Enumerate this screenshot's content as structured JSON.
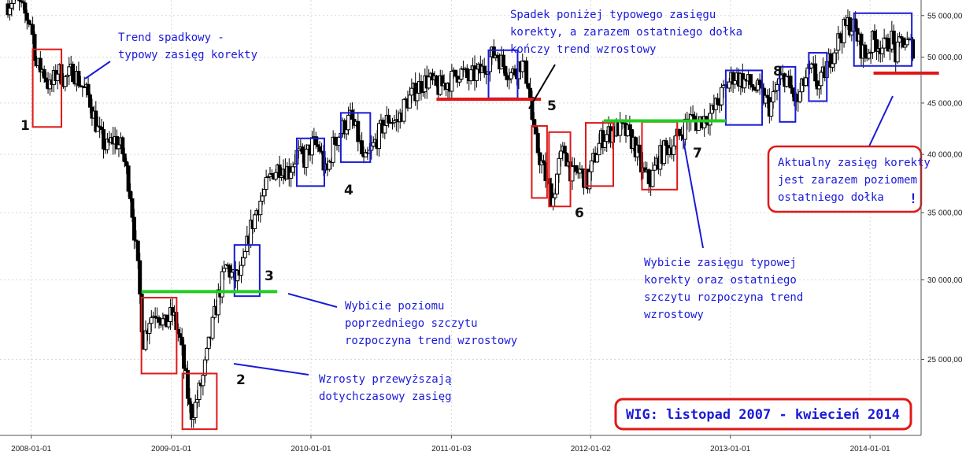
{
  "chart_data": {
    "type": "candlestick",
    "title": "WIG: listopad 2007 - kwiecień 2014",
    "y_scale": "log",
    "ylim": [
      21000,
      57000
    ],
    "x_ticks": [
      "2008-01-01",
      "2009-01-01",
      "2010-01-01",
      "2011-01-03",
      "2012-01-02",
      "2013-01-01",
      "2014-01-01"
    ],
    "y_ticks": [
      "25 000,00",
      "30 000,00",
      "35 000,00",
      "40 000,00",
      "45 000,00",
      "50 000,00",
      "55 000,00"
    ],
    "y_tick_values": [
      25000,
      30000,
      35000,
      40000,
      45000,
      50000,
      55000
    ],
    "x_range": [
      "2007-11-01",
      "2014-04-30"
    ],
    "series": [
      {
        "values": [
          [
            "2007-11-01",
            56500
          ],
          [
            "2007-11-20",
            57500
          ],
          [
            "2007-12-10",
            55500
          ],
          [
            "2008-01-01",
            54000
          ],
          [
            "2008-01-15",
            49000
          ],
          [
            "2008-02-01",
            48500
          ],
          [
            "2008-02-20",
            46500
          ],
          [
            "2008-03-10",
            48500
          ],
          [
            "2008-03-30",
            47500
          ],
          [
            "2008-04-20",
            48500
          ],
          [
            "2008-05-10",
            47000
          ],
          [
            "2008-06-01",
            45500
          ],
          [
            "2008-06-25",
            42000
          ],
          [
            "2008-07-15",
            40500
          ],
          [
            "2008-08-05",
            41500
          ],
          [
            "2008-08-25",
            40500
          ],
          [
            "2008-09-15",
            37000
          ],
          [
            "2008-10-05",
            31000
          ],
          [
            "2008-10-20",
            26000
          ],
          [
            "2008-11-05",
            27500
          ],
          [
            "2008-11-25",
            28000
          ],
          [
            "2008-12-15",
            27000
          ],
          [
            "2009-01-05",
            27800
          ],
          [
            "2009-01-25",
            26000
          ],
          [
            "2009-02-10",
            23500
          ],
          [
            "2009-02-20",
            22000
          ],
          [
            "2009-03-05",
            22500
          ],
          [
            "2009-03-25",
            24000
          ],
          [
            "2009-04-15",
            26500
          ],
          [
            "2009-05-05",
            29000
          ],
          [
            "2009-05-25",
            31000
          ],
          [
            "2009-06-15",
            30000
          ],
          [
            "2009-07-05",
            30500
          ],
          [
            "2009-07-25",
            33500
          ],
          [
            "2009-08-15",
            35500
          ],
          [
            "2009-09-05",
            37000
          ],
          [
            "2009-09-25",
            38500
          ],
          [
            "2009-10-15",
            39000
          ],
          [
            "2009-11-05",
            38500
          ],
          [
            "2009-11-25",
            40000
          ],
          [
            "2009-12-15",
            39500
          ],
          [
            "2010-01-05",
            41000
          ],
          [
            "2010-01-25",
            40500
          ],
          [
            "2010-02-10",
            38000
          ],
          [
            "2010-03-01",
            41000
          ],
          [
            "2010-03-25",
            42500
          ],
          [
            "2010-04-15",
            43500
          ],
          [
            "2010-05-05",
            41500
          ],
          [
            "2010-05-20",
            39000
          ],
          [
            "2010-06-10",
            40500
          ],
          [
            "2010-07-05",
            42500
          ],
          [
            "2010-07-25",
            43500
          ],
          [
            "2010-08-15",
            43000
          ],
          [
            "2010-09-05",
            45000
          ],
          [
            "2010-09-25",
            46000
          ],
          [
            "2010-10-15",
            47000
          ],
          [
            "2010-11-05",
            47500
          ],
          [
            "2010-11-25",
            46500
          ],
          [
            "2010-12-15",
            47000
          ],
          [
            "2011-01-05",
            47500
          ],
          [
            "2011-01-25",
            48500
          ],
          [
            "2011-02-15",
            47500
          ],
          [
            "2011-03-05",
            48000
          ],
          [
            "2011-03-25",
            48500
          ],
          [
            "2011-04-15",
            50000
          ],
          [
            "2011-05-01",
            50500
          ],
          [
            "2011-05-20",
            49000
          ],
          [
            "2011-06-10",
            48000
          ],
          [
            "2011-07-05",
            49500
          ],
          [
            "2011-07-25",
            47000
          ],
          [
            "2011-08-05",
            42000
          ],
          [
            "2011-08-20",
            40000
          ],
          [
            "2011-09-10",
            37500
          ],
          [
            "2011-09-25",
            36000
          ],
          [
            "2011-10-10",
            39000
          ],
          [
            "2011-10-25",
            40500
          ],
          [
            "2011-11-15",
            38000
          ],
          [
            "2011-12-05",
            38500
          ],
          [
            "2011-12-25",
            37500
          ],
          [
            "2012-01-10",
            39500
          ],
          [
            "2012-01-30",
            41500
          ],
          [
            "2012-02-20",
            42000
          ],
          [
            "2012-03-15",
            42500
          ],
          [
            "2012-04-05",
            42000
          ],
          [
            "2012-04-25",
            41000
          ],
          [
            "2012-05-15",
            38500
          ],
          [
            "2012-06-05",
            37500
          ],
          [
            "2012-06-25",
            39500
          ],
          [
            "2012-07-15",
            40500
          ],
          [
            "2012-08-05",
            41000
          ],
          [
            "2012-08-25",
            42000
          ],
          [
            "2012-09-15",
            43500
          ],
          [
            "2012-10-05",
            43000
          ],
          [
            "2012-10-25",
            43500
          ],
          [
            "2012-11-15",
            44000
          ],
          [
            "2012-12-05",
            45500
          ],
          [
            "2012-12-25",
            47000
          ],
          [
            "2013-01-10",
            48000
          ],
          [
            "2013-01-30",
            47500
          ],
          [
            "2013-02-20",
            47000
          ],
          [
            "2013-03-10",
            46500
          ],
          [
            "2013-03-30",
            45500
          ],
          [
            "2013-04-15",
            44500
          ],
          [
            "2013-05-05",
            47000
          ],
          [
            "2013-05-25",
            48000
          ],
          [
            "2013-06-10",
            46000
          ],
          [
            "2013-06-25",
            45000
          ],
          [
            "2013-07-15",
            47500
          ],
          [
            "2013-08-05",
            48500
          ],
          [
            "2013-08-20",
            46500
          ],
          [
            "2013-09-10",
            49000
          ],
          [
            "2013-09-25",
            50500
          ],
          [
            "2013-10-15",
            52500
          ],
          [
            "2013-11-05",
            54000
          ],
          [
            "2013-11-20",
            53500
          ],
          [
            "2013-12-05",
            51500
          ],
          [
            "2013-12-20",
            50000
          ],
          [
            "2014-01-10",
            52000
          ],
          [
            "2014-01-25",
            51500
          ],
          [
            "2014-02-10",
            51000
          ],
          [
            "2014-02-25",
            52500
          ],
          [
            "2014-03-10",
            50000
          ],
          [
            "2014-03-25",
            52000
          ],
          [
            "2014-04-10",
            51500
          ],
          [
            "2014-04-25",
            51000
          ]
        ]
      }
    ],
    "annotations": {
      "numbers": [
        "1",
        "2",
        "3",
        "4",
        "5",
        "6",
        "7",
        "8"
      ],
      "text_trend_down": [
        "Trend spadkowy -",
        "typowy zasięg korekty"
      ],
      "text_growth": [
        "Wzrosty przewyższają",
        "dotychczasowy zasięg"
      ],
      "text_breakout_peak": [
        "Wybicie poziomu",
        "poprzedniego szczytu",
        "rozpoczyna trend wzrostowy"
      ],
      "text_drop": [
        "Spadek poniżej typowego zasięgu",
        "korekty, a zarazem  ostatniego dołka",
        "kończy trend wzrostowy"
      ],
      "text_breakout_range": [
        "Wybicie zasięgu typowej",
        "korekty oraz ostatniego",
        "szczytu rozpoczyna trend",
        "wzrostowy"
      ],
      "text_current": [
        "Aktualny zasięg korekty",
        "jest zarazem poziomem",
        "ostatniego dołka"
      ],
      "exclamation": "!"
    },
    "colors": {
      "annotation": "#1a1ad8",
      "red": "#e01818",
      "blue": "#1a1ad8",
      "green": "#22cc22",
      "candle": "#000000"
    }
  }
}
